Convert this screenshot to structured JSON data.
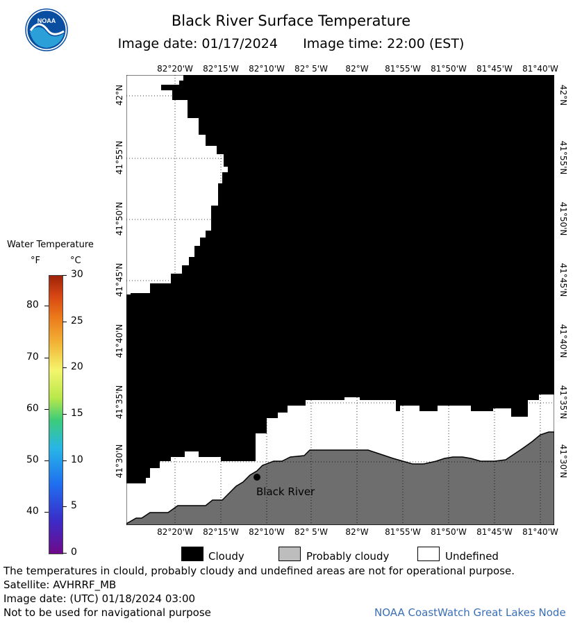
{
  "header": {
    "title": "Black River Surface Temperature",
    "image_date": "Image date: 01/17/2024",
    "image_time": "Image time: 22:00 (EST)"
  },
  "logo": {
    "text": "NOAA",
    "icon": "noaa-logo-icon"
  },
  "map": {
    "lon_labels": [
      "82°20'W",
      "82°15'W",
      "82°10'W",
      "82° 5'W",
      "82°W",
      "81°55'W",
      "81°50'W",
      "81°45'W",
      "81°40'W"
    ],
    "lat_labels": [
      "42°N",
      "41°55'N",
      "41°50'N",
      "41°45'N",
      "41°40'N",
      "41°35'N",
      "41°30'N"
    ],
    "station_label": "Black River",
    "colors": {
      "cloudy": "#000000",
      "probably_cloudy": "#6e6e6e",
      "undefined": "#ffffff",
      "grid": "#000000"
    }
  },
  "legend": {
    "title": "Water Temperature",
    "unit_f": "°F",
    "unit_c": "°C",
    "f_ticks": [
      "80",
      "70",
      "60",
      "50",
      "40"
    ],
    "c_ticks": [
      "30",
      "25",
      "20",
      "15",
      "10",
      "5",
      "0"
    ],
    "range_c": [
      0,
      30
    ]
  },
  "key": {
    "cloudy": "Cloudy",
    "probably_cloudy": "Probably cloudy",
    "undefined": "Undefined"
  },
  "footer": {
    "disclaimer": "The temperatures in clould, probably cloudy and undefined areas are not for operational purpose.",
    "satellite": "Satellite: AVHRRF_MB",
    "utc_date": "Image date: (UTC) 01/18/2024  03:00",
    "navigation": "Not to be used for navigational purpose",
    "credit": "NOAA CoastWatch Great Lakes Node"
  }
}
